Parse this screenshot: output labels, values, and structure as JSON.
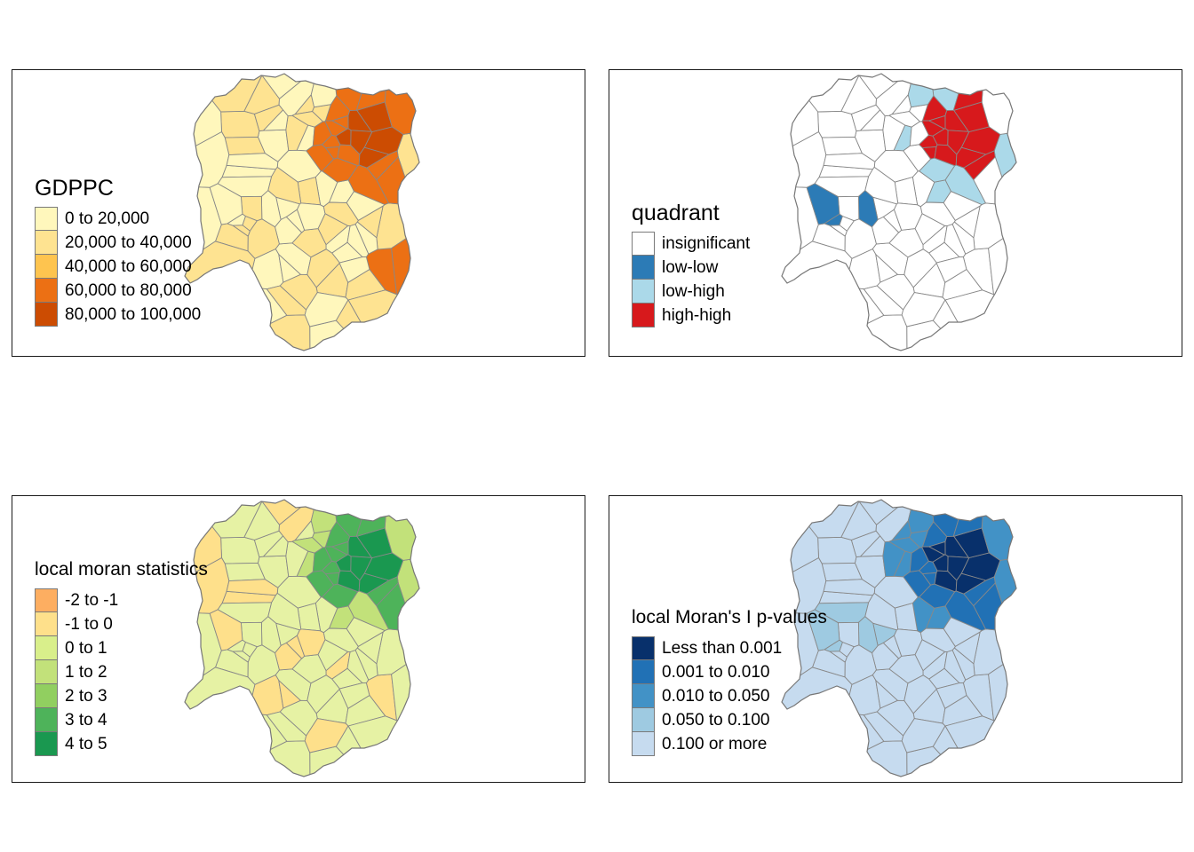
{
  "panels": [
    {
      "id": "gdppc",
      "legend_title": "GDPPC",
      "fill_map": [
        "#fff7bc",
        "#fee391",
        "#fec44f",
        "#fe9929",
        "#ec7014",
        "#cc4c02"
      ],
      "legend_items": [
        {
          "label": "0 to 20,000",
          "color": "#fff7bc"
        },
        {
          "label": "20,000 to 40,000",
          "color": "#fee391"
        },
        {
          "label": "40,000 to 60,000",
          "color": "#fec44f"
        },
        {
          "label": "60,000 to 80,000",
          "color": "#ec7014"
        },
        {
          "label": "80,000 to 100,000",
          "color": "#cc4c02"
        }
      ]
    },
    {
      "id": "quadrant",
      "legend_title": "quadrant",
      "legend_items": [
        {
          "label": "insignificant",
          "color": "#ffffff"
        },
        {
          "label": "low-low",
          "color": "#2c7bb6"
        },
        {
          "label": "low-high",
          "color": "#abd9e9"
        },
        {
          "label": "high-high",
          "color": "#d7191c"
        }
      ]
    },
    {
      "id": "local-moran",
      "legend_title": "local moran statistics",
      "legend_items": [
        {
          "label": "-2 to -1",
          "color": "#fdae61"
        },
        {
          "label": "-1 to 0",
          "color": "#fee08b"
        },
        {
          "label": "0 to 1",
          "color": "#d9ef8b"
        },
        {
          "label": "1 to 2",
          "color": "#c2e17a"
        },
        {
          "label": "2 to 3",
          "color": "#91cf60"
        },
        {
          "label": "3 to 4",
          "color": "#4eb35a"
        },
        {
          "label": "4 to 5",
          "color": "#1a9850"
        }
      ]
    },
    {
      "id": "pvalues",
      "legend_title": "local Moran's I p-values",
      "legend_items": [
        {
          "label": "Less than 0.001",
          "color": "#08306b"
        },
        {
          "label": "0.001 to 0.010",
          "color": "#2171b5"
        },
        {
          "label": "0.010 to 0.050",
          "color": "#4292c6"
        },
        {
          "label": "0.050 to 0.100",
          "color": "#9ecae1"
        },
        {
          "label": "0.100 or more",
          "color": "#c6dbef"
        }
      ]
    }
  ]
}
